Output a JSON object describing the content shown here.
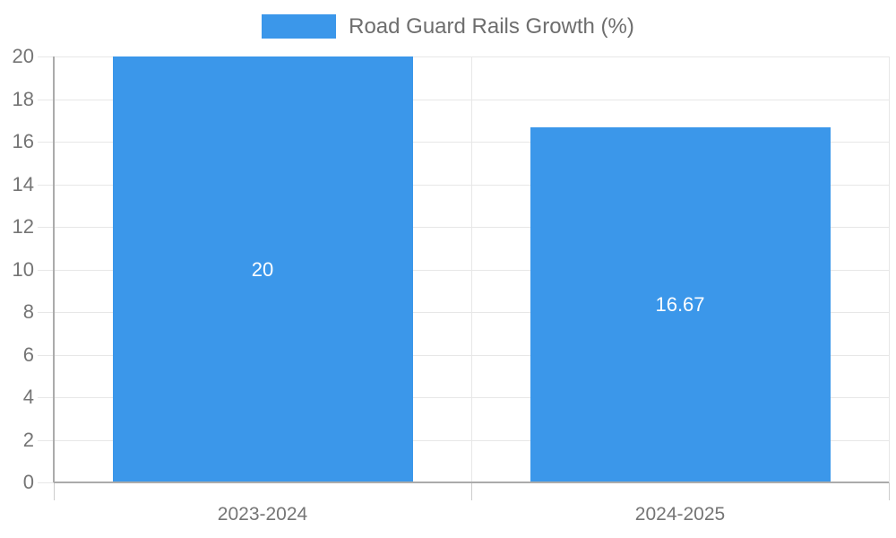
{
  "legend": {
    "label": "Road Guard Rails Growth (%)"
  },
  "chart_data": {
    "type": "bar",
    "title": "Road Guard Rails Growth (%)",
    "categories": [
      "2023-2024",
      "2024-2025"
    ],
    "values": [
      20,
      16.67
    ],
    "value_labels": [
      "20",
      "16.67"
    ],
    "xlabel": "",
    "ylabel": "",
    "ylim": [
      0,
      20
    ],
    "ytick_step": 2,
    "grid": true,
    "legend_position": "top",
    "colors": {
      "bar": "#3b97ea",
      "bar_label_text": "#ffffff",
      "tick_text": "#757575",
      "legend_text": "#6e6e6e",
      "grid_line": "#e7e7e7",
      "axis_line": "#ababab",
      "background": "#ffffff"
    }
  }
}
